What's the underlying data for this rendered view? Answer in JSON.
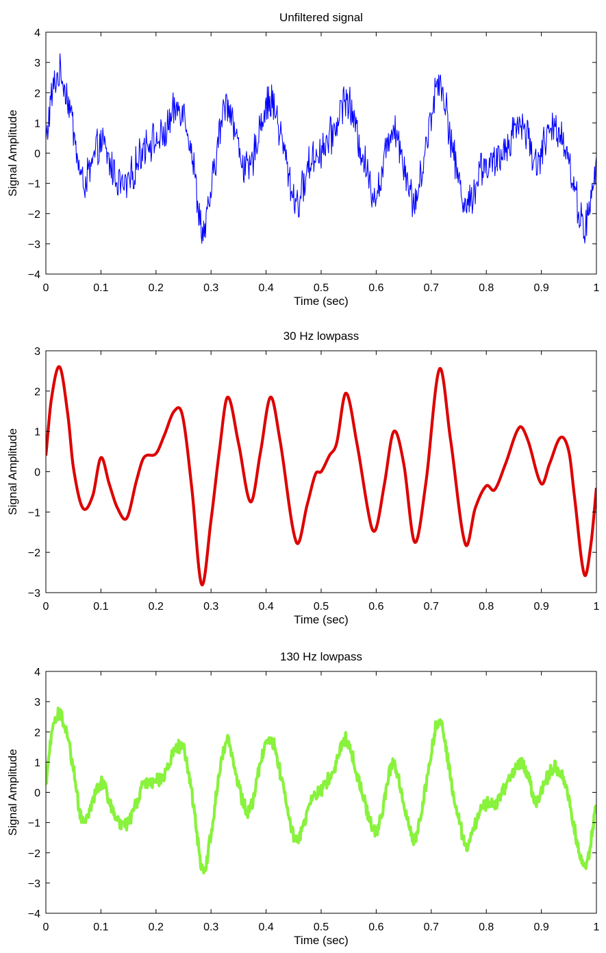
{
  "chart_data": [
    {
      "type": "line",
      "title": "Unfiltered signal",
      "xlabel": "Time (sec)",
      "ylabel": "Signal Amplitude",
      "xlim": [
        0,
        1
      ],
      "ylim": [
        -4,
        4
      ],
      "xticks": [
        0,
        0.1,
        0.2,
        0.3,
        0.4,
        0.5,
        0.6,
        0.7,
        0.8,
        0.9,
        1
      ],
      "xtick_labels": [
        "0",
        "0.1",
        "0.2",
        "0.3",
        "0.4",
        "0.5",
        "0.6",
        "0.7",
        "0.8",
        "0.9",
        "1"
      ],
      "yticks": [
        -4,
        -3,
        -2,
        -1,
        0,
        1,
        2,
        3,
        4
      ],
      "ytick_labels": [
        "−4",
        "−3",
        "−2",
        "−1",
        "0",
        "1",
        "2",
        "3",
        "4"
      ],
      "grid": false,
      "series": [
        {
          "name": "Unfiltered signal",
          "color": "#0000ff",
          "noise_amplitude": 0.55,
          "x": [
            0,
            0.01,
            0.025,
            0.04,
            0.05,
            0.065,
            0.08,
            0.1,
            0.12,
            0.145,
            0.18,
            0.2,
            0.215,
            0.235,
            0.25,
            0.265,
            0.285,
            0.3,
            0.315,
            0.33,
            0.35,
            0.37,
            0.39,
            0.41,
            0.43,
            0.455,
            0.48,
            0.5,
            0.525,
            0.545,
            0.57,
            0.6,
            0.63,
            0.65,
            0.67,
            0.69,
            0.715,
            0.74,
            0.765,
            0.79,
            0.805,
            0.82,
            0.84,
            0.86,
            0.875,
            0.89,
            0.91,
            0.93,
            0.945,
            0.96,
            0.98,
            1.0
          ],
          "y": [
            0.3,
            1.8,
            2.6,
            1.8,
            0.8,
            -0.9,
            -0.6,
            0.3,
            -0.5,
            -1.1,
            0.3,
            0.4,
            0.6,
            1.4,
            1.4,
            0.0,
            -2.6,
            -1.3,
            0.6,
            1.7,
            0.2,
            -0.6,
            1.0,
            1.7,
            0.3,
            -1.6,
            -0.3,
            0.1,
            0.8,
            1.8,
            0.3,
            -1.3,
            0.9,
            -0.3,
            -1.6,
            0.2,
            2.4,
            0.0,
            -1.7,
            -0.5,
            -0.4,
            -0.3,
            0.4,
            1.0,
            0.6,
            -0.3,
            0.5,
            0.8,
            0.2,
            -1.2,
            -2.4,
            -0.4
          ]
        }
      ]
    },
    {
      "type": "line",
      "title": "30 Hz lowpass",
      "xlabel": "Time (sec)",
      "ylabel": "Signal Amplitude",
      "xlim": [
        0,
        1
      ],
      "ylim": [
        -3,
        3
      ],
      "xticks": [
        0,
        0.1,
        0.2,
        0.3,
        0.4,
        0.5,
        0.6,
        0.7,
        0.8,
        0.9,
        1
      ],
      "xtick_labels": [
        "0",
        "0.1",
        "0.2",
        "0.3",
        "0.4",
        "0.5",
        "0.6",
        "0.7",
        "0.8",
        "0.9",
        "1"
      ],
      "yticks": [
        -3,
        -2,
        -1,
        0,
        1,
        2,
        3
      ],
      "ytick_labels": [
        "−3",
        "−2",
        "−1",
        "0",
        "1",
        "2",
        "3"
      ],
      "grid": false,
      "series": [
        {
          "name": "30 Hz lowpass",
          "color": "#dd0000",
          "x": [
            0,
            0.01,
            0.025,
            0.04,
            0.05,
            0.067,
            0.085,
            0.1,
            0.115,
            0.13,
            0.147,
            0.165,
            0.178,
            0.2,
            0.215,
            0.233,
            0.248,
            0.265,
            0.283,
            0.3,
            0.315,
            0.33,
            0.35,
            0.372,
            0.39,
            0.408,
            0.425,
            0.455,
            0.475,
            0.49,
            0.5,
            0.515,
            0.528,
            0.545,
            0.565,
            0.59,
            0.6,
            0.615,
            0.632,
            0.65,
            0.67,
            0.69,
            0.715,
            0.735,
            0.762,
            0.78,
            0.8,
            0.815,
            0.835,
            0.86,
            0.875,
            0.9,
            0.915,
            0.935,
            0.95,
            0.96,
            0.978,
            0.99,
            1.0
          ],
          "y": [
            0.4,
            1.8,
            2.6,
            1.4,
            0.1,
            -0.9,
            -0.6,
            0.35,
            -0.3,
            -0.9,
            -1.15,
            -0.2,
            0.35,
            0.45,
            0.9,
            1.5,
            1.4,
            -0.4,
            -2.8,
            -1.2,
            0.5,
            1.85,
            0.7,
            -0.75,
            0.5,
            1.85,
            0.8,
            -1.75,
            -0.8,
            -0.05,
            0.0,
            0.4,
            0.7,
            1.95,
            0.7,
            -1.3,
            -1.4,
            -0.3,
            1.0,
            0.2,
            -1.75,
            -0.3,
            2.55,
            0.8,
            -1.8,
            -0.9,
            -0.35,
            -0.45,
            0.2,
            1.1,
            0.8,
            -0.3,
            0.2,
            0.85,
            0.5,
            -0.6,
            -2.55,
            -1.8,
            -0.4
          ]
        }
      ]
    },
    {
      "type": "line",
      "title": "130 Hz lowpass",
      "xlabel": "Time (sec)",
      "ylabel": "Signal Amplitude",
      "xlim": [
        0,
        1
      ],
      "ylim": [
        -4,
        4
      ],
      "xticks": [
        0,
        0.1,
        0.2,
        0.3,
        0.4,
        0.5,
        0.6,
        0.7,
        0.8,
        0.9,
        1
      ],
      "xtick_labels": [
        "0",
        "0.1",
        "0.2",
        "0.3",
        "0.4",
        "0.5",
        "0.6",
        "0.7",
        "0.8",
        "0.9",
        "1"
      ],
      "yticks": [
        -4,
        -3,
        -2,
        -1,
        0,
        1,
        2,
        3,
        4
      ],
      "ytick_labels": [
        "−4",
        "−3",
        "−2",
        "−1",
        "0",
        "1",
        "2",
        "3",
        "4"
      ],
      "grid": false,
      "series": [
        {
          "name": "130 Hz lowpass",
          "color": "#88f23c",
          "noise_amplitude": 0.2,
          "x": [
            0,
            0.01,
            0.025,
            0.04,
            0.05,
            0.065,
            0.08,
            0.1,
            0.12,
            0.145,
            0.18,
            0.2,
            0.215,
            0.235,
            0.25,
            0.265,
            0.285,
            0.3,
            0.315,
            0.33,
            0.35,
            0.37,
            0.39,
            0.41,
            0.43,
            0.455,
            0.48,
            0.5,
            0.525,
            0.545,
            0.57,
            0.6,
            0.63,
            0.65,
            0.67,
            0.69,
            0.715,
            0.74,
            0.765,
            0.79,
            0.805,
            0.82,
            0.84,
            0.86,
            0.875,
            0.89,
            0.91,
            0.93,
            0.945,
            0.96,
            0.98,
            1.0
          ],
          "y": [
            0.3,
            1.8,
            2.6,
            1.8,
            0.8,
            -0.9,
            -0.6,
            0.3,
            -0.5,
            -1.1,
            0.3,
            0.4,
            0.6,
            1.4,
            1.4,
            0.0,
            -2.6,
            -1.3,
            0.6,
            1.7,
            0.2,
            -0.6,
            1.0,
            1.7,
            0.3,
            -1.6,
            -0.3,
            0.1,
            0.8,
            1.8,
            0.3,
            -1.3,
            0.9,
            -0.3,
            -1.6,
            0.2,
            2.4,
            0.0,
            -1.7,
            -0.5,
            -0.4,
            -0.3,
            0.4,
            1.0,
            0.6,
            -0.3,
            0.5,
            0.8,
            0.2,
            -1.2,
            -2.4,
            -0.4
          ]
        }
      ]
    }
  ]
}
